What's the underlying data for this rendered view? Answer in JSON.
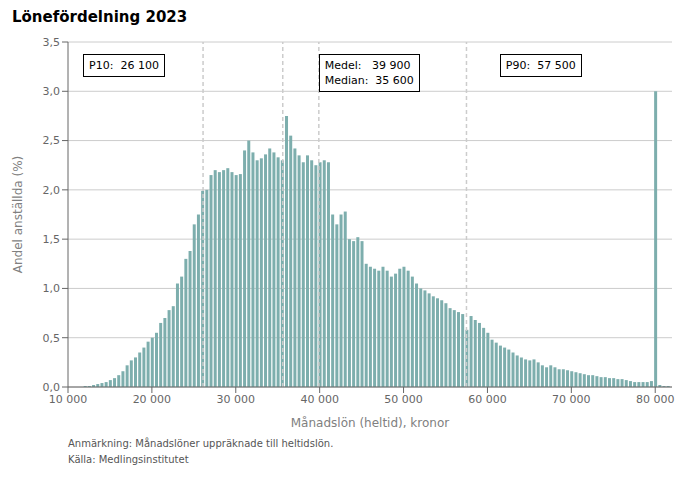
{
  "chart_data": {
    "type": "bar",
    "title": "Lönefördelning 2023",
    "xlabel": "Månadslön (heltid), kronor",
    "ylabel": "Andel anställda (%)",
    "color": "#7DAEAD",
    "x": [
      10500,
      11000,
      11500,
      12000,
      12500,
      13000,
      13500,
      14000,
      14500,
      15000,
      15500,
      16000,
      16500,
      17000,
      17500,
      18000,
      18500,
      19000,
      19500,
      20000,
      20500,
      21000,
      21500,
      22000,
      22500,
      23000,
      23500,
      24000,
      24500,
      25000,
      25500,
      26000,
      26500,
      27000,
      27500,
      28000,
      28500,
      29000,
      29500,
      30000,
      30500,
      31000,
      31500,
      32000,
      32500,
      33000,
      33500,
      34000,
      34500,
      35000,
      35500,
      36000,
      36500,
      37000,
      37500,
      38000,
      38500,
      39000,
      39500,
      40000,
      40500,
      41000,
      41500,
      42000,
      42500,
      43000,
      43500,
      44000,
      44500,
      45000,
      45500,
      46000,
      46500,
      47000,
      47500,
      48000,
      48500,
      49000,
      49500,
      50000,
      50500,
      51000,
      51500,
      52000,
      52500,
      53000,
      53500,
      54000,
      54500,
      55000,
      55500,
      56000,
      56500,
      57000,
      57500,
      58000,
      58500,
      59000,
      59500,
      60000,
      60500,
      61000,
      61500,
      62000,
      62500,
      63000,
      63500,
      64000,
      64500,
      65000,
      65500,
      66000,
      66500,
      67000,
      67500,
      68000,
      68500,
      69000,
      69500,
      70000,
      70500,
      71000,
      71500,
      72000,
      72500,
      73000,
      73500,
      74000,
      74500,
      75000,
      75500,
      76000,
      76500,
      77000,
      77500,
      78000,
      78500,
      79000,
      79500,
      80000,
      80500,
      81000,
      81500
    ],
    "values": [
      0.0,
      0.0,
      0.0,
      0.01,
      0.01,
      0.02,
      0.03,
      0.04,
      0.05,
      0.07,
      0.09,
      0.12,
      0.16,
      0.22,
      0.27,
      0.3,
      0.35,
      0.4,
      0.46,
      0.5,
      0.55,
      0.65,
      0.7,
      0.78,
      0.82,
      1.05,
      1.12,
      1.3,
      1.38,
      1.65,
      1.75,
      1.99,
      2.0,
      2.15,
      2.2,
      2.18,
      2.2,
      2.22,
      2.18,
      2.15,
      2.16,
      2.4,
      2.5,
      2.38,
      2.3,
      2.32,
      2.36,
      2.42,
      2.38,
      2.33,
      2.3,
      2.75,
      2.55,
      2.42,
      2.35,
      2.28,
      2.35,
      2.3,
      2.25,
      2.28,
      2.3,
      2.28,
      1.75,
      1.65,
      1.75,
      1.78,
      1.5,
      1.48,
      1.52,
      1.48,
      1.25,
      1.22,
      1.2,
      1.18,
      1.22,
      1.18,
      1.12,
      1.15,
      1.2,
      1.22,
      1.18,
      1.12,
      1.05,
      1.0,
      0.98,
      0.95,
      0.92,
      0.9,
      0.88,
      0.85,
      0.8,
      0.78,
      0.76,
      0.74,
      0.58,
      0.72,
      0.68,
      0.65,
      0.6,
      0.55,
      0.48,
      0.45,
      0.42,
      0.4,
      0.38,
      0.35,
      0.32,
      0.3,
      0.28,
      0.27,
      0.28,
      0.25,
      0.22,
      0.2,
      0.22,
      0.2,
      0.18,
      0.18,
      0.17,
      0.16,
      0.15,
      0.14,
      0.13,
      0.12,
      0.12,
      0.11,
      0.1,
      0.1,
      0.09,
      0.09,
      0.08,
      0.08,
      0.07,
      0.06,
      0.05,
      0.05,
      0.05,
      0.05,
      0.06,
      3.0,
      0.02,
      0.01,
      0.01
    ],
    "xlim": [
      10000,
      82000
    ],
    "xticks": [
      {
        "value": 10000,
        "label": "10 000"
      },
      {
        "value": 20000,
        "label": "20 000"
      },
      {
        "value": 30000,
        "label": "30 000"
      },
      {
        "value": 40000,
        "label": "40 000"
      },
      {
        "value": 50000,
        "label": "50 000"
      },
      {
        "value": 60000,
        "label": "60 000"
      },
      {
        "value": 70000,
        "label": "70 000"
      },
      {
        "value": 80000,
        "label": "80 000"
      }
    ],
    "ylim": [
      0.0,
      3.5
    ],
    "yticks": [
      {
        "value": 0.0,
        "label": "0,0"
      },
      {
        "value": 0.5,
        "label": "0,5"
      },
      {
        "value": 1.0,
        "label": "1,0"
      },
      {
        "value": 1.5,
        "label": "1,5"
      },
      {
        "value": 2.0,
        "label": "2,0"
      },
      {
        "value": 2.5,
        "label": "2,5"
      },
      {
        "value": 3.0,
        "label": "3,0"
      },
      {
        "value": 3.5,
        "label": "3,5"
      }
    ],
    "grid": true,
    "reference_lines": [
      26100,
      35600,
      39900,
      57500
    ],
    "annotations": [
      [
        "P10:  26 100"
      ],
      [
        "Medel:   39 900",
        "Median:  35 600"
      ],
      [
        "P90:  57 500"
      ]
    ],
    "notes": [
      "Anmärkning: Månadslöner uppräknade till heltidslön.",
      "Källa: Medlingsinstitutet"
    ]
  }
}
